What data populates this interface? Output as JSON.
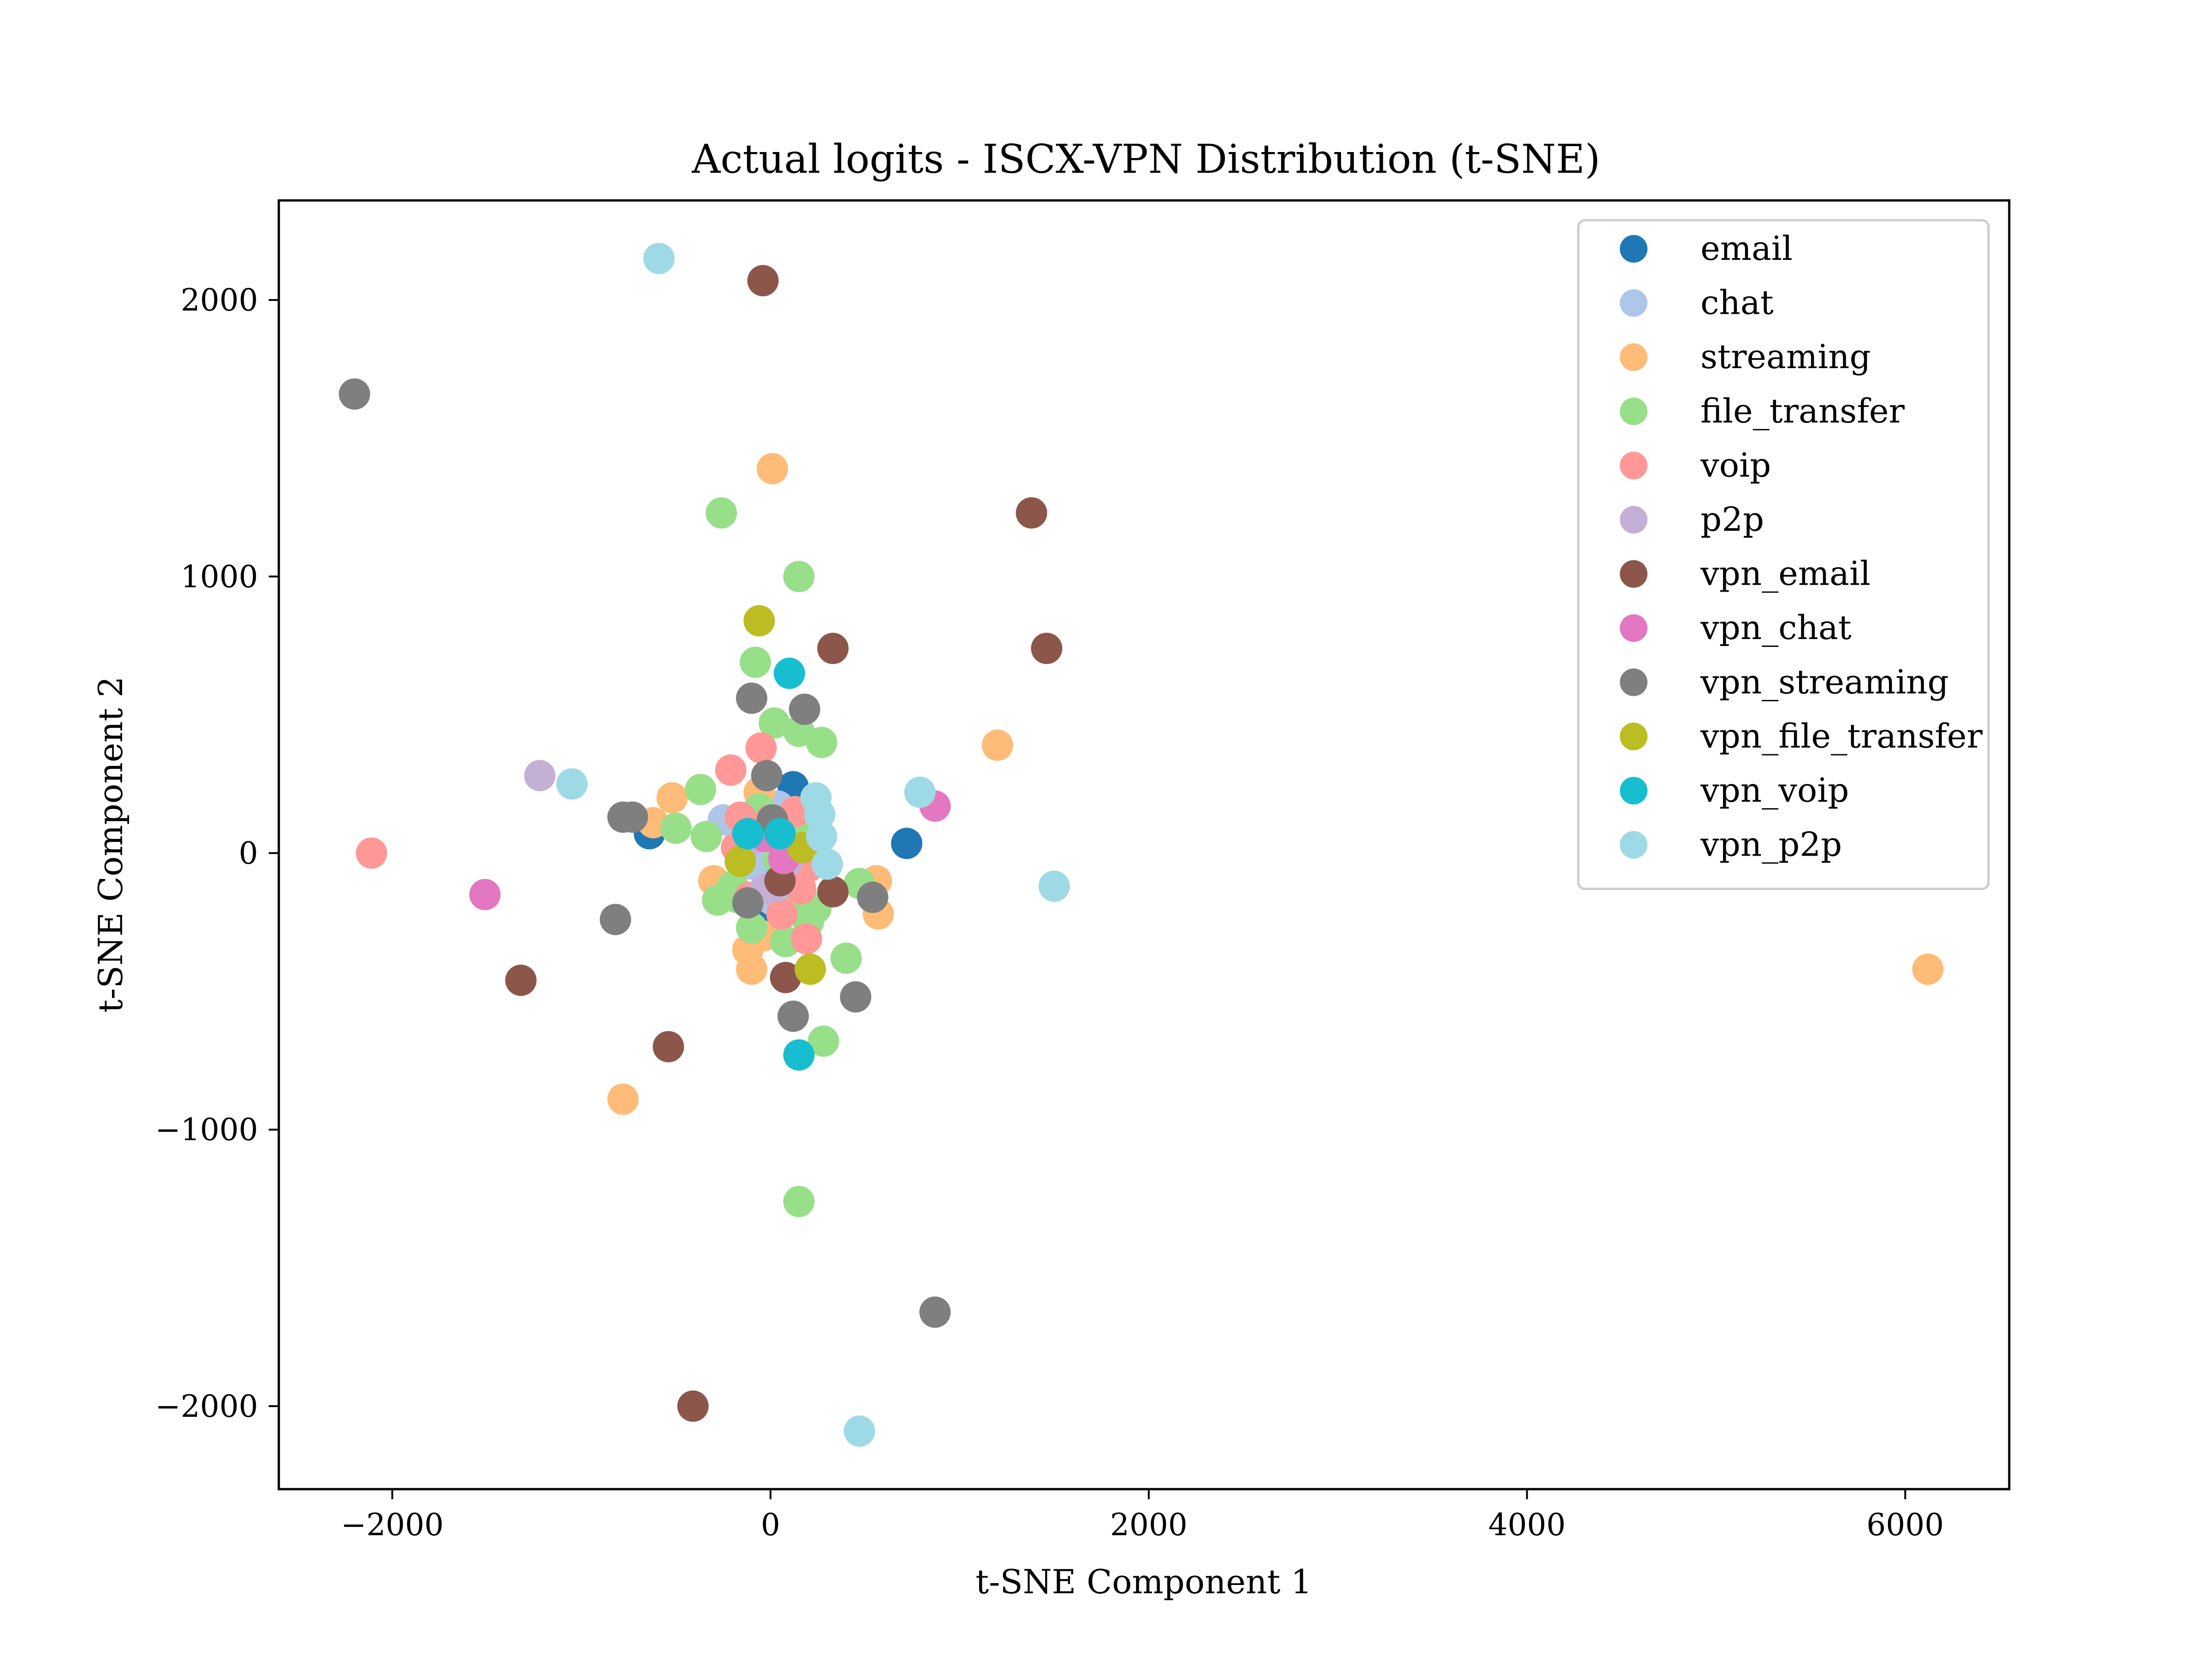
{
  "chart_data": {
    "type": "scatter",
    "title": "Actual logits - ISCX-VPN Distribution (t-SNE)",
    "xlabel": "t-SNE Component 1",
    "ylabel": "t-SNE Component 2",
    "xlim": [
      -2600,
      6550
    ],
    "ylim": [
      -2300,
      2360
    ],
    "xticks": [
      -2000,
      0,
      2000,
      4000,
      6000
    ],
    "yticks": [
      -2000,
      -1000,
      0,
      1000,
      2000
    ],
    "xtick_labels": [
      "−2000",
      "0",
      "2000",
      "4000",
      "6000"
    ],
    "ytick_labels": [
      "−2000",
      "−1000",
      "0",
      "1000",
      "2000"
    ],
    "grid": false,
    "legend_position": "top-right",
    "series": [
      {
        "name": "email",
        "color": "#1f77b4",
        "points": [
          [
            120,
            240
          ],
          [
            720,
            35
          ],
          [
            -640,
            70
          ],
          [
            100,
            130
          ],
          [
            -30,
            -200
          ],
          [
            60,
            -80
          ],
          [
            -120,
            10
          ],
          [
            150,
            -150
          ],
          [
            30,
            50
          ],
          [
            -60,
            -260
          ]
        ]
      },
      {
        "name": "chat",
        "color": "#aec7e8",
        "points": [
          [
            -250,
            120
          ],
          [
            -30,
            0
          ],
          [
            40,
            170
          ],
          [
            120,
            -70
          ],
          [
            -100,
            -40
          ],
          [
            10,
            -170
          ],
          [
            60,
            40
          ],
          [
            -200,
            -120
          ],
          [
            -40,
            20
          ],
          [
            20,
            -30
          ]
        ]
      },
      {
        "name": "streaming",
        "color": "#ffbb78",
        "points": [
          [
            10,
            1390
          ],
          [
            1200,
            390
          ],
          [
            6120,
            -420
          ],
          [
            -780,
            -890
          ],
          [
            560,
            -100
          ],
          [
            570,
            -220
          ],
          [
            -520,
            200
          ],
          [
            -620,
            110
          ],
          [
            -100,
            -420
          ],
          [
            -120,
            -350
          ],
          [
            -60,
            220
          ],
          [
            -300,
            -100
          ],
          [
            130,
            -50
          ],
          [
            -40,
            -300
          ]
        ]
      },
      {
        "name": "file_transfer",
        "color": "#98df8a",
        "points": [
          [
            -260,
            1230
          ],
          [
            150,
            1000
          ],
          [
            -80,
            690
          ],
          [
            20,
            470
          ],
          [
            150,
            440
          ],
          [
            270,
            400
          ],
          [
            -370,
            230
          ],
          [
            -500,
            90
          ],
          [
            400,
            -380
          ],
          [
            280,
            -680
          ],
          [
            150,
            -1260
          ],
          [
            470,
            -110
          ],
          [
            -280,
            -170
          ],
          [
            -200,
            -120
          ],
          [
            120,
            -200
          ],
          [
            200,
            -250
          ],
          [
            -100,
            -270
          ],
          [
            40,
            -20
          ],
          [
            180,
            60
          ],
          [
            -340,
            60
          ],
          [
            240,
            -200
          ],
          [
            -180,
            -160
          ],
          [
            80,
            -320
          ],
          [
            -60,
            160
          ]
        ]
      },
      {
        "name": "voip",
        "color": "#ff9896",
        "points": [
          [
            -2110,
            0
          ],
          [
            -210,
            300
          ],
          [
            -50,
            380
          ],
          [
            -160,
            130
          ],
          [
            190,
            -310
          ],
          [
            60,
            -220
          ],
          [
            160,
            -130
          ],
          [
            -110,
            -160
          ],
          [
            130,
            150
          ],
          [
            0,
            120
          ],
          [
            -180,
            20
          ],
          [
            200,
            -50
          ]
        ]
      },
      {
        "name": "p2p",
        "color": "#c5b0d5",
        "points": [
          [
            -1220,
            280
          ],
          [
            -30,
            -130
          ],
          [
            -90,
            50
          ],
          [
            90,
            -30
          ],
          [
            30,
            -120
          ]
        ]
      },
      {
        "name": "vpn_email",
        "color": "#8c564b",
        "points": [
          [
            -40,
            2070
          ],
          [
            1380,
            1230
          ],
          [
            1460,
            740
          ],
          [
            330,
            740
          ],
          [
            -1320,
            -460
          ],
          [
            -540,
            -700
          ],
          [
            -410,
            -2000
          ],
          [
            80,
            -450
          ],
          [
            330,
            -140
          ],
          [
            50,
            -100
          ]
        ]
      },
      {
        "name": "vpn_chat",
        "color": "#e377c2",
        "points": [
          [
            870,
            170
          ],
          [
            -1510,
            -150
          ],
          [
            -30,
            60
          ],
          [
            70,
            -20
          ]
        ]
      },
      {
        "name": "vpn_streaming",
        "color": "#7f7f7f",
        "points": [
          [
            -2200,
            1660
          ],
          [
            -100,
            560
          ],
          [
            180,
            520
          ],
          [
            -780,
            130
          ],
          [
            -730,
            130
          ],
          [
            -820,
            -240
          ],
          [
            450,
            -520
          ],
          [
            120,
            -590
          ],
          [
            870,
            -1660
          ],
          [
            540,
            -160
          ],
          [
            -20,
            280
          ],
          [
            10,
            120
          ],
          [
            -120,
            -180
          ]
        ]
      },
      {
        "name": "vpn_file_transfer",
        "color": "#bcbd22",
        "points": [
          [
            -60,
            840
          ],
          [
            210,
            -420
          ],
          [
            -160,
            -30
          ],
          [
            170,
            20
          ]
        ]
      },
      {
        "name": "vpn_voip",
        "color": "#17becf",
        "points": [
          [
            100,
            650
          ],
          [
            150,
            -730
          ],
          [
            50,
            70
          ],
          [
            -120,
            70
          ]
        ]
      },
      {
        "name": "vpn_p2p",
        "color": "#9edae5",
        "points": [
          [
            -590,
            2150
          ],
          [
            -1050,
            250
          ],
          [
            790,
            220
          ],
          [
            1500,
            -120
          ],
          [
            470,
            -2090
          ],
          [
            300,
            -40
          ],
          [
            240,
            200
          ],
          [
            260,
            140
          ],
          [
            270,
            60
          ]
        ]
      }
    ]
  }
}
